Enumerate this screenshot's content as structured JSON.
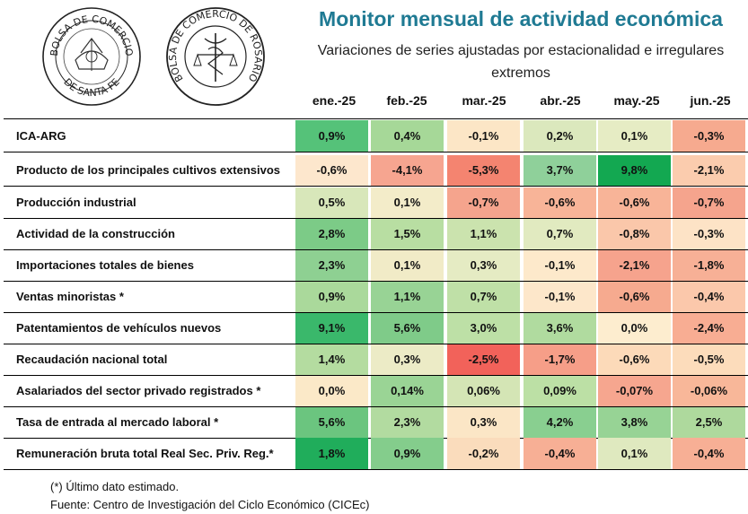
{
  "header": {
    "title": "Monitor mensual de actividad económica",
    "subtitle": "Variaciones de series ajustadas por estacionalidad e irregulares extremos"
  },
  "logos": {
    "santa_fe": {
      "top": "BOLSA DE COMERCIO",
      "bottom": "DE SANTA FE"
    },
    "rosario": {
      "text": "BOLSA DE COMERCIO DE ROSARIO"
    }
  },
  "columns": [
    "ene.-25",
    "feb.-25",
    "mar.-25",
    "abr.-25",
    "may.-25",
    "jun.-25"
  ],
  "rows": [
    {
      "label": "ICA-ARG",
      "values": [
        "0,9%",
        "0,4%",
        "-0,1%",
        "0,2%",
        "0,1%",
        "-0,3%"
      ],
      "colors": [
        "#55c279",
        "#a6d898",
        "#fce6c6",
        "#dbe8bd",
        "#e6ecc4",
        "#f6aa8f"
      ]
    },
    {
      "label": "Producto de los principales cultivos extensivos",
      "values": [
        "-0,6%",
        "-4,1%",
        "-5,3%",
        "3,7%",
        "9,8%",
        "-2,1%"
      ],
      "colors": [
        "#fde7cd",
        "#f6a590",
        "#f48470",
        "#8fd09a",
        "#13a851",
        "#fbccae"
      ]
    },
    {
      "label": "Producción industrial",
      "values": [
        "0,5%",
        "0,1%",
        "-0,7%",
        "-0,6%",
        "-0,6%",
        "-0,7%"
      ],
      "colors": [
        "#d8e7ba",
        "#f3ecc9",
        "#f5a48d",
        "#f8b498",
        "#f8b498",
        "#f5a48d"
      ]
    },
    {
      "label": "Actividad de la construcción",
      "values": [
        "2,8%",
        "1,5%",
        "1,1%",
        "0,7%",
        "-0,8%",
        "-0,3%"
      ],
      "colors": [
        "#7ccb87",
        "#b8dea2",
        "#cbe3ae",
        "#e1eac0",
        "#fac7aa",
        "#fde3c6"
      ]
    },
    {
      "label": "Importaciones totales de bienes",
      "values": [
        "2,3%",
        "0,1%",
        "0,3%",
        "-0,1%",
        "-2,1%",
        "-1,8%"
      ],
      "colors": [
        "#8ed092",
        "#f1ebc7",
        "#e5ebc3",
        "#fde9cb",
        "#f6a38d",
        "#f7b096"
      ]
    },
    {
      "label": "Ventas minoristas *",
      "values": [
        "0,9%",
        "1,1%",
        "0,7%",
        "-0,1%",
        "-0,6%",
        "-0,4%"
      ],
      "colors": [
        "#aad99b",
        "#98d395",
        "#bfe0a7",
        "#fde7ca",
        "#f6aa8f",
        "#fbc8ab"
      ]
    },
    {
      "label": "Patentamientos de vehículos nuevos",
      "values": [
        "9,1%",
        "5,6%",
        "3,0%",
        "3,6%",
        "0,0%",
        "-2,4%"
      ],
      "colors": [
        "#3ab86b",
        "#7fcb89",
        "#bde0a6",
        "#b0db9f",
        "#fdedcf",
        "#f8ad93"
      ]
    },
    {
      "label": "Recaudación nacional total",
      "values": [
        "1,4%",
        "0,3%",
        "-2,5%",
        "-1,7%",
        "-0,6%",
        "-0,5%"
      ],
      "colors": [
        "#b4dca0",
        "#ecebc6",
        "#f2625a",
        "#f69e88",
        "#fcdab9",
        "#fcdcbb"
      ]
    },
    {
      "label": "Asalariados del sector privado registrados *",
      "values": [
        "0,0%",
        "0,14%",
        "0,06%",
        "0,09%",
        "-0,07%",
        "-0,06%"
      ],
      "colors": [
        "#fbe9c8",
        "#9ad495",
        "#d4e5b5",
        "#bce0a5",
        "#f6a68f",
        "#f8b799"
      ]
    },
    {
      "label": "Tasa de entrada al mercado laboral *",
      "values": [
        "5,6%",
        "2,3%",
        "0,3%",
        "4,2%",
        "3,8%",
        "2,5%"
      ],
      "colors": [
        "#6bc57f",
        "#b2dba0",
        "#fbe6c6",
        "#89cf90",
        "#97d395",
        "#aed99d"
      ]
    },
    {
      "label": "Remuneración bruta total Real Sec. Priv. Reg.*",
      "values": [
        "1,8%",
        "0,9%",
        "-0,2%",
        "-0,4%",
        "0,1%",
        "-0,4%"
      ],
      "colors": [
        "#20ad5b",
        "#84cd8c",
        "#fadcbc",
        "#f7af95",
        "#dfe9bf",
        "#f7af95"
      ]
    }
  ],
  "notes": {
    "estimate": "(*) Último dato estimado.",
    "source": "Fuente: Centro de Investigación del Ciclo Económico (CICEc)"
  }
}
